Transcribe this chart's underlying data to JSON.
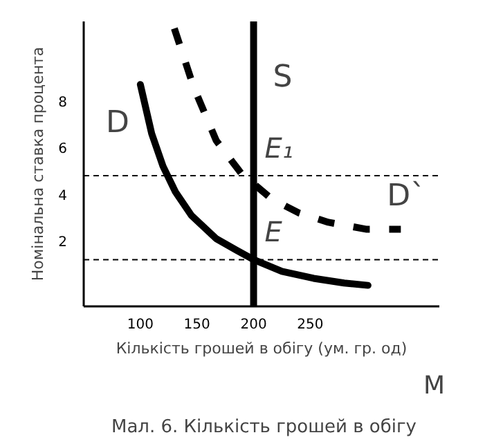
{
  "chart_data": {
    "type": "line",
    "title": "Мал. 6. Кількість грошей в обігу",
    "xlabel": "Кількість грошей в обігу (ум. гр. од)",
    "ylabel": "Номінальна ставка процента",
    "xlim": [
      50,
      364
    ],
    "ylim": [
      -0.8,
      11.4
    ],
    "xticks": [
      100,
      150,
      200,
      250
    ],
    "yticks": [
      2,
      4,
      6,
      8
    ],
    "grid": false,
    "series": [
      {
        "name": "D",
        "color": "#000000",
        "line_style": "solid",
        "x": [
          100,
          110,
          120,
          131,
          145,
          167,
          185,
          200,
          225,
          253,
          280,
          301
        ],
        "values": [
          8.7,
          6.6,
          5.2,
          4.1,
          3.1,
          2.1,
          1.6,
          1.2,
          0.7,
          0.4,
          0.2,
          0.1
        ]
      },
      {
        "name": "D`",
        "color": "#000000",
        "line_style": "dashed",
        "x": [
          130,
          147,
          167,
          189,
          216,
          240,
          266,
          300,
          330
        ],
        "values": [
          11.1,
          8.6,
          6.3,
          4.9,
          3.8,
          3.2,
          2.8,
          2.5,
          2.5
        ]
      }
    ],
    "ref_lines": [
      {
        "axis": "x",
        "value": 200,
        "label": "S",
        "line_style": "solid",
        "color": "#000000"
      },
      {
        "axis": "y",
        "value": 4.8,
        "line_style": "dashed",
        "color": "#000000"
      },
      {
        "axis": "y",
        "value": 1.2,
        "line_style": "dashed",
        "color": "#000000"
      }
    ],
    "annotations": [
      {
        "text": "E₁",
        "x": 200,
        "y": 4.8
      },
      {
        "text": "E",
        "x": 200,
        "y": 1.2
      },
      "M"
    ]
  }
}
